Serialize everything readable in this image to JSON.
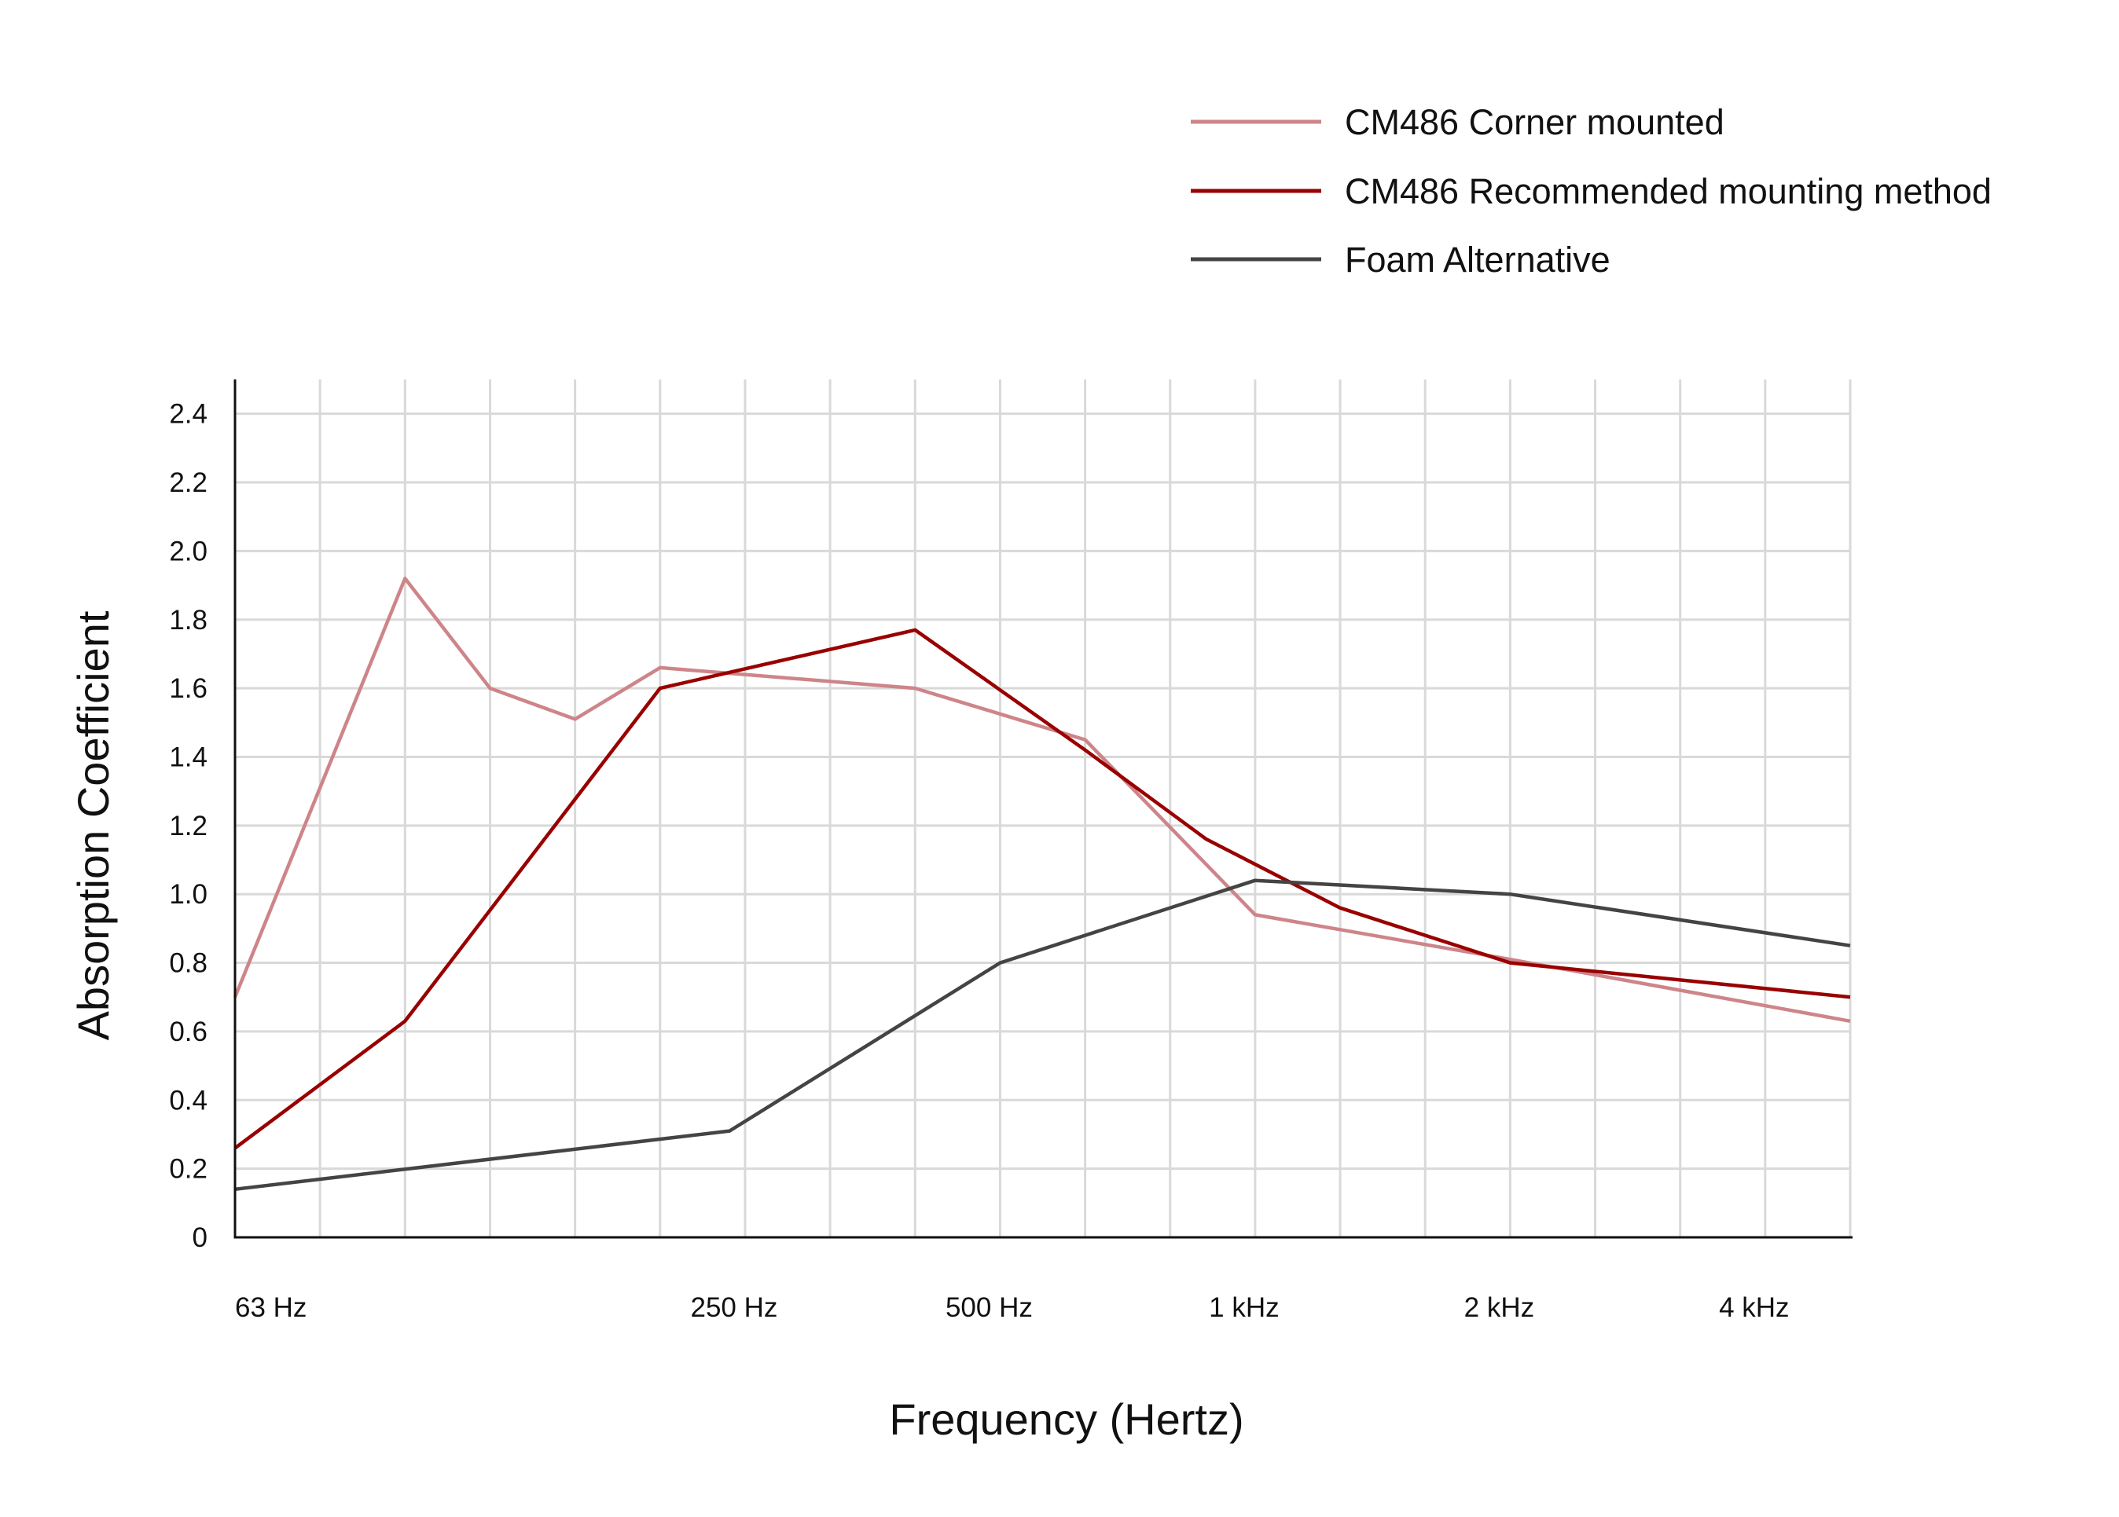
{
  "chart_data": {
    "type": "line",
    "title": "",
    "xlabel": "Frequency (Hertz)",
    "ylabel": "Absorption Coefficient",
    "x_scale": "log (third-octave bands)",
    "xlim": [
      63,
      5000
    ],
    "ylim": [
      0,
      2.5
    ],
    "grid": true,
    "legend_position": "top-right",
    "x_ticks": [
      {
        "value": 63,
        "label": "63 Hz"
      },
      {
        "value": 250,
        "label": "250 Hz"
      },
      {
        "value": 500,
        "label": "500 Hz"
      },
      {
        "value": 1000,
        "label": "1 kHz"
      },
      {
        "value": 2000,
        "label": "2 kHz"
      },
      {
        "value": 4000,
        "label": "4 kHz"
      }
    ],
    "y_ticks": [
      "0",
      "0.2",
      "0.4",
      "0.6",
      "0.8",
      "1.0",
      "1.2",
      "1.4",
      "1.6",
      "1.8",
      "2.0",
      "2.2",
      "2.4"
    ],
    "series": [
      {
        "name": "CM486 Corner mounted",
        "color": "#cd8589",
        "x": [
          63,
          100,
          125,
          160,
          200,
          400,
          630,
          1000,
          2000,
          5000
        ],
        "y": [
          0.7,
          1.92,
          1.6,
          1.51,
          1.66,
          1.6,
          1.45,
          0.94,
          0.81,
          0.63
        ]
      },
      {
        "name": "CM486 Recommended mounting method",
        "color": "#990000",
        "x": [
          63,
          100,
          200,
          400,
          630,
          880,
          1250,
          2000,
          5000
        ],
        "y": [
          0.26,
          0.63,
          1.6,
          1.77,
          1.42,
          1.16,
          0.96,
          0.8,
          0.7
        ]
      },
      {
        "name": "Foam Alternative",
        "color": "#444444",
        "x": [
          63,
          240,
          500,
          1000,
          2000,
          5000
        ],
        "y": [
          0.14,
          0.31,
          0.8,
          1.04,
          1.0,
          0.85
        ]
      }
    ]
  }
}
